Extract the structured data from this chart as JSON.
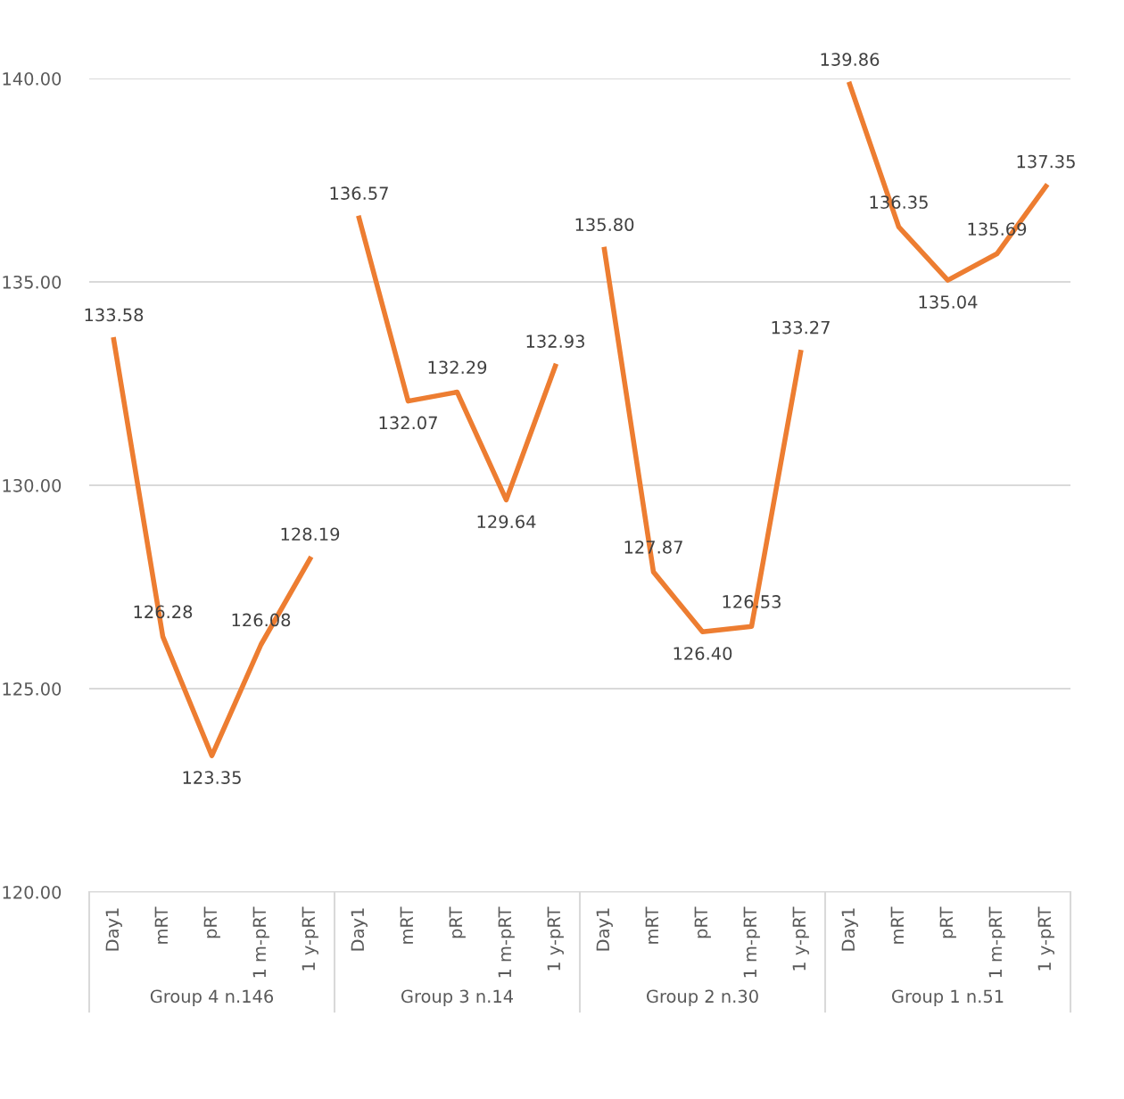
{
  "chart_data": {
    "type": "line",
    "categories": [
      "Day1",
      "mRT",
      "pRT",
      "1 m-pRT",
      "1 y-pRT",
      "Day1",
      "mRT",
      "pRT",
      "1 m-pRT",
      "1 y-pRT",
      "Day1",
      "mRT",
      "pRT",
      "1 m-pRT",
      "1 y-pRT",
      "Day1",
      "mRT",
      "pRT",
      "1 m-pRT",
      "1 y-pRT"
    ],
    "series": [
      {
        "color": "#ed7d31",
        "values": [
          133.58,
          126.28,
          123.35,
          126.08,
          128.19,
          null,
          null,
          null,
          null,
          null,
          null,
          null,
          null,
          null,
          null,
          null,
          null,
          null,
          null,
          null
        ],
        "value_labels": [
          "133.58",
          "126.28",
          "123.35",
          "126.08",
          "128.19",
          null,
          null,
          null,
          null,
          null,
          null,
          null,
          null,
          null,
          null,
          null,
          null,
          null,
          null,
          null
        ]
      },
      {
        "color": "#ed7d31",
        "values": [
          null,
          null,
          null,
          null,
          null,
          136.57,
          132.07,
          132.29,
          129.64,
          132.93,
          null,
          null,
          null,
          null,
          null,
          null,
          null,
          null,
          null,
          null
        ],
        "value_labels": [
          null,
          null,
          null,
          null,
          null,
          "136.57",
          "132.07",
          "132.29",
          "129.64",
          "132.93",
          null,
          null,
          null,
          null,
          null,
          null,
          null,
          null,
          null,
          null
        ]
      },
      {
        "color": "#ed7d31",
        "values": [
          null,
          null,
          null,
          null,
          null,
          null,
          null,
          null,
          null,
          null,
          135.8,
          127.87,
          126.4,
          126.53,
          133.27,
          null,
          null,
          null,
          null,
          null
        ],
        "value_labels": [
          null,
          null,
          null,
          null,
          null,
          null,
          null,
          null,
          null,
          null,
          "135.80",
          "127.87",
          "126.40",
          "126.53",
          "133.27",
          null,
          null,
          null,
          null,
          null
        ]
      },
      {
        "color": "#ed7d31",
        "values": [
          null,
          null,
          null,
          null,
          null,
          null,
          null,
          null,
          null,
          null,
          null,
          null,
          null,
          null,
          null,
          139.86,
          136.35,
          135.04,
          135.69,
          137.35
        ],
        "value_labels": [
          null,
          null,
          null,
          null,
          null,
          null,
          null,
          null,
          null,
          null,
          null,
          null,
          null,
          null,
          null,
          "139.86",
          "136.35",
          "135.04",
          "135.69",
          "137.35"
        ]
      }
    ],
    "annotations": [
      "Group 4 n.146",
      "Group 3 n.14",
      "Group 2 n.30",
      "Group 1 n.51"
    ],
    "ylim": [
      120,
      140
    ],
    "yticks": [
      {
        "value": 120,
        "label": "120.00"
      },
      {
        "value": 125,
        "label": "125.00"
      },
      {
        "value": 130,
        "label": "130.00"
      },
      {
        "value": 135,
        "label": "135.00"
      },
      {
        "value": 140,
        "label": "140.00"
      }
    ],
    "grid": "y",
    "legend": false,
    "marker": "none",
    "line_style": "solid"
  }
}
